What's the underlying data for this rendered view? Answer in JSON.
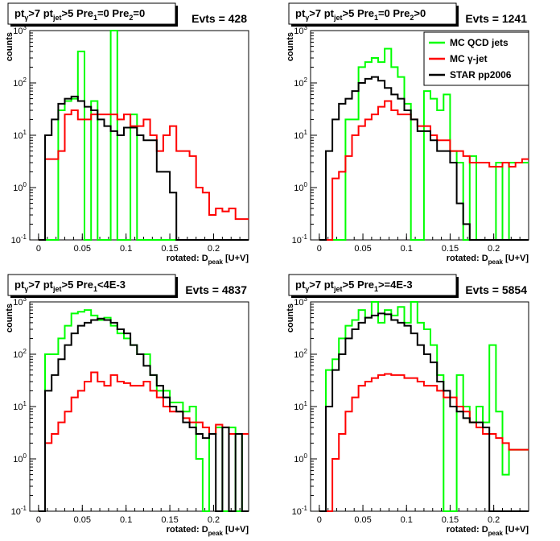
{
  "chart_data": [
    {
      "type": "line",
      "title": "pt_γ>7  pt_jet>5 Pre_1=0 Pre_2=0",
      "title_parts": [
        "pt",
        "γ",
        ">7  pt",
        "jet",
        ">5 Pre",
        "1",
        "=0 Pre",
        "2",
        "=0"
      ],
      "evts": "Evts = 428",
      "xlabel": "rotated: D",
      "xlabel_sub": "peak",
      "xlabel_tail": "[U+V]",
      "ylabel": "counts",
      "xlim": [
        -0.01,
        0.24
      ],
      "ylim": [
        0.1,
        1000
      ],
      "yscale": "log",
      "xticks": [
        "0",
        "0.05",
        "0.1",
        "0.15",
        "0.2"
      ],
      "ytick_exponents": [
        -1,
        0,
        1,
        2,
        3
      ],
      "bin_width": 0.0075,
      "series": [
        {
          "color": "#00ff00",
          "x0": 0.0,
          "values": [
            0,
            0,
            0.1,
            30,
            45,
            50,
            400,
            0.1,
            45,
            0.1,
            0.1,
            1000,
            0.1,
            0.1,
            25,
            0.1,
            0.1,
            0.1,
            0.1,
            0.1,
            0.1,
            0.1,
            0.1,
            0.1,
            0.1,
            0.1,
            0.1,
            0.1,
            0.1,
            0.1,
            0.1,
            0.1
          ]
        },
        {
          "color": "#ff0000",
          "x0": 0.0,
          "values": [
            0,
            3.5,
            3.5,
            5,
            25,
            30,
            20,
            20,
            25,
            25,
            25,
            25,
            20,
            25,
            15,
            15,
            20,
            10,
            5,
            10,
            15,
            5,
            5,
            4,
            1,
            0.8,
            0.3,
            0.4,
            0.35,
            0.4,
            0.25,
            0.25
          ]
        },
        {
          "color": "#000000",
          "x0": 0.0,
          "values": [
            0,
            10,
            20,
            40,
            50,
            55,
            45,
            35,
            30,
            20,
            15,
            12,
            10,
            14,
            14,
            10,
            8,
            8,
            2,
            2,
            0.8,
            0.1,
            0.1,
            0.1,
            0.1,
            0.1,
            0.1,
            0.1,
            0.1,
            0.1,
            0.1,
            0.1
          ]
        }
      ]
    },
    {
      "type": "line",
      "title": "pt_γ>7  pt_jet>5 Pre_1=0 Pre_2>0",
      "title_parts": [
        "pt",
        "γ",
        ">7  pt",
        "jet",
        ">5 Pre",
        "1",
        "=0 Pre",
        "2",
        ">0"
      ],
      "evts": "Evts = 1241",
      "xlabel": "rotated: D",
      "xlabel_sub": "peak",
      "xlabel_tail": "[U+V]",
      "ylabel": "counts",
      "xlim": [
        -0.01,
        0.24
      ],
      "ylim": [
        0.1,
        1000
      ],
      "yscale": "log",
      "xticks": [
        "0",
        "0.05",
        "0.1",
        "0.15",
        "0.2"
      ],
      "ytick_exponents": [
        -1,
        0,
        1,
        2,
        3
      ],
      "bin_width": 0.0075,
      "series": [
        {
          "color": "#00ff00",
          "x0": 0.0,
          "values": [
            0.1,
            0.1,
            0.1,
            0.1,
            20,
            20,
            200,
            250,
            300,
            250,
            450,
            200,
            130,
            40,
            0.1,
            0.1,
            70,
            50,
            30,
            60,
            5,
            3,
            0.1,
            4,
            0.1,
            0.1,
            0.1,
            3,
            0.1,
            3,
            3,
            3
          ]
        },
        {
          "color": "#ff0000",
          "x0": 0.0,
          "values": [
            0,
            0,
            1.5,
            2,
            4,
            10,
            15,
            20,
            25,
            35,
            45,
            30,
            25,
            25,
            20,
            15,
            15,
            10,
            8,
            8,
            5,
            5,
            4,
            3,
            3,
            3,
            2.5,
            2.5,
            3,
            2.5,
            3,
            3.5
          ]
        },
        {
          "color": "#000000",
          "x0": 0.0,
          "values": [
            0,
            5,
            20,
            40,
            50,
            70,
            100,
            120,
            130,
            110,
            80,
            60,
            50,
            30,
            20,
            12,
            12,
            8,
            5,
            5,
            3,
            0.5,
            0.2,
            0.1,
            0.1,
            0.1,
            0.1,
            0.1,
            0.1,
            0.1,
            0.1,
            0.1
          ]
        }
      ]
    },
    {
      "type": "line",
      "title": "pt_γ>7  pt_jet>5 Pre_1<4E-3",
      "title_parts": [
        "pt",
        "γ",
        ">7  pt",
        "jet",
        ">5 Pre",
        "1",
        "<4E-3",
        "",
        ""
      ],
      "evts": "Evts = 4837",
      "xlabel": "rotated: D",
      "xlabel_sub": "peak",
      "xlabel_tail": "[U+V]",
      "ylabel": "counts",
      "xlim": [
        -0.01,
        0.24
      ],
      "ylim": [
        0.1,
        1000
      ],
      "yscale": "log",
      "xticks": [
        "0",
        "0.05",
        "0.1",
        "0.15",
        "0.2"
      ],
      "ytick_exponents": [
        -1,
        0,
        1,
        2,
        3
      ],
      "bin_width": 0.0075,
      "series": [
        {
          "color": "#00ff00",
          "x0": 0.0,
          "values": [
            0.1,
            100,
            100,
            200,
            350,
            600,
            650,
            700,
            550,
            450,
            500,
            350,
            250,
            200,
            150,
            100,
            100,
            40,
            20,
            20,
            12,
            12,
            8,
            10,
            1,
            0.1,
            3,
            4,
            0.1,
            4,
            0.1,
            3
          ]
        },
        {
          "color": "#ff0000",
          "x0": 0.0,
          "values": [
            0,
            2,
            3,
            5,
            8,
            15,
            20,
            30,
            45,
            30,
            25,
            40,
            30,
            28,
            25,
            25,
            30,
            20,
            15,
            10,
            8,
            8,
            6,
            5,
            5,
            4,
            3,
            4.5,
            4,
            3,
            3,
            3
          ]
        },
        {
          "color": "#000000",
          "x0": 0.0,
          "values": [
            0.1,
            20,
            40,
            80,
            150,
            250,
            350,
            400,
            450,
            480,
            450,
            400,
            300,
            250,
            150,
            100,
            60,
            40,
            25,
            15,
            10,
            8,
            5,
            4,
            3,
            2.5,
            3,
            0.1,
            4,
            0.1,
            3,
            0.1
          ]
        }
      ]
    },
    {
      "type": "line",
      "title": "pt_γ>7  pt_jet>5 Pre_1>=4E-3",
      "title_parts": [
        "pt",
        "γ",
        ">7  pt",
        "jet",
        ">5 Pre",
        "1",
        ">=4E-3",
        "",
        ""
      ],
      "evts": "Evts = 5854",
      "xlabel": "rotated: D",
      "xlabel_sub": "peak",
      "xlabel_tail": "[U+V]",
      "ylabel": "counts",
      "xlim": [
        -0.01,
        0.24
      ],
      "ylim": [
        0.1,
        1000
      ],
      "yscale": "log",
      "xticks": [
        "0",
        "0.05",
        "0.1",
        "0.15",
        "0.2"
      ],
      "ytick_exponents": [
        -1,
        0,
        1,
        2,
        3
      ],
      "bin_width": 0.0075,
      "series": [
        {
          "color": "#00ff00",
          "x0": 0.0,
          "values": [
            0.1,
            50,
            80,
            200,
            350,
            450,
            700,
            500,
            1000,
            400,
            700,
            550,
            800,
            400,
            1000,
            400,
            300,
            150,
            40,
            0.1,
            0.1,
            40,
            10,
            5,
            10,
            5,
            150,
            8,
            0.5,
            1.5,
            1.5,
            1.5
          ]
        },
        {
          "color": "#ff0000",
          "x0": 0.0,
          "values": [
            0,
            0.1,
            1,
            3,
            8,
            15,
            25,
            30,
            35,
            40,
            42,
            40,
            40,
            35,
            35,
            30,
            25,
            25,
            20,
            15,
            15,
            10,
            8,
            5,
            4,
            3,
            3,
            2.5,
            2,
            1.5,
            1.5,
            1.5
          ]
        },
        {
          "color": "#000000",
          "x0": 0.0,
          "values": [
            0,
            10,
            50,
            100,
            200,
            300,
            400,
            500,
            550,
            600,
            580,
            450,
            400,
            350,
            250,
            150,
            100,
            70,
            30,
            20,
            10,
            8,
            6,
            5,
            5,
            4,
            0.1,
            0.1,
            0.1,
            0.1,
            0.1,
            0.1
          ]
        }
      ]
    }
  ],
  "legend": {
    "entries": [
      {
        "label": "MC QCD jets",
        "color": "#00ff00"
      },
      {
        "label": "MC γ-jet",
        "color": "#ff0000"
      },
      {
        "label": "STAR pp2006",
        "color": "#000000"
      }
    ]
  }
}
